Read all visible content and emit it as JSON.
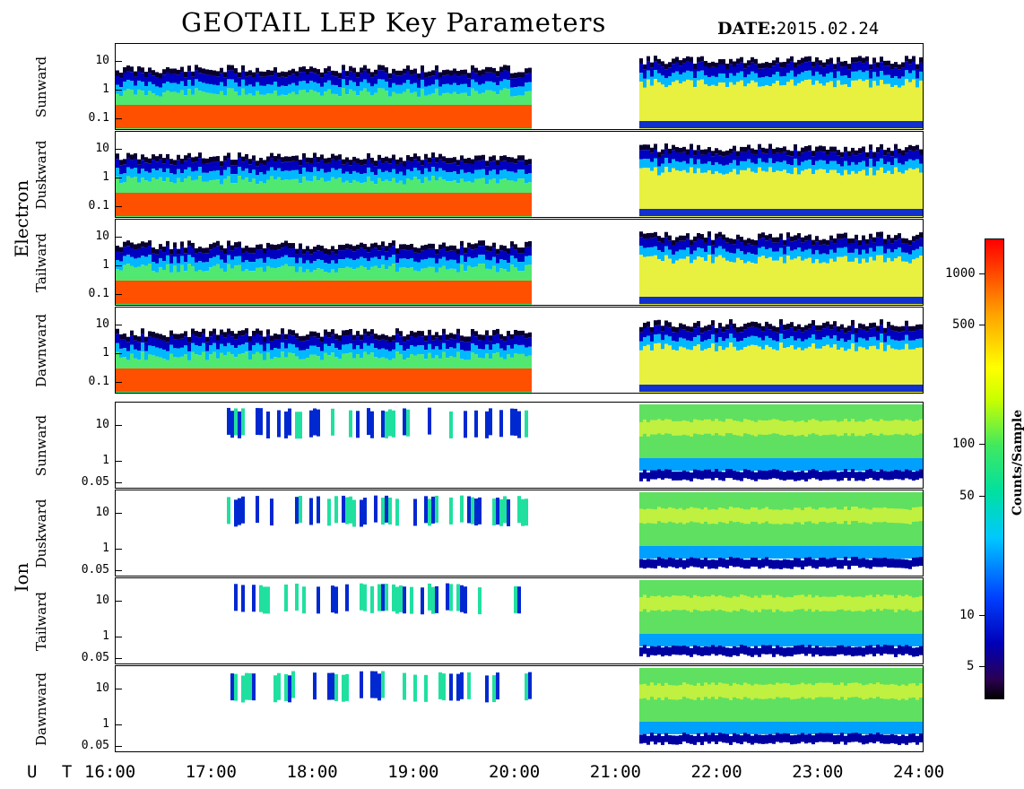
{
  "header": {
    "title": "GEOTAIL LEP Key Parameters",
    "date_label": "DATE:",
    "date_value": "2015.02.24"
  },
  "groups": [
    {
      "label": "Electron",
      "panels": [
        "Sunward",
        "Duskward",
        "Tailward",
        "Dawnward"
      ]
    },
    {
      "label": "Ion",
      "panels": [
        "Sunward",
        "Duskward",
        "Tailward",
        "Dawnward"
      ]
    }
  ],
  "x_axis": {
    "label": "U T",
    "ticks": [
      "16:00",
      "17:00",
      "18:00",
      "19:00",
      "20:00",
      "21:00",
      "22:00",
      "23:00",
      "24:00"
    ]
  },
  "colorbar": {
    "label": "Counts/Sample",
    "ticks": [
      "5",
      "10",
      "50",
      "100",
      "500",
      "1000"
    ],
    "colors": [
      "#000000",
      "#0000b8",
      "#0040ff",
      "#00c8ff",
      "#40e860",
      "#ffff00",
      "#ffa000",
      "#ff0000"
    ]
  },
  "chart_data": {
    "type": "heatmap",
    "title": "GEOTAIL LEP Key Parameters",
    "xlabel": "U T",
    "x_ticks": [
      "16:00",
      "17:00",
      "18:00",
      "19:00",
      "20:00",
      "21:00",
      "22:00",
      "23:00",
      "24:00"
    ],
    "xlim": [
      "16:00",
      "24:00"
    ],
    "data_gap": [
      "20:05",
      "21:10"
    ],
    "colorbar": {
      "label": "Counts/Sample",
      "ticks": [
        5,
        10,
        50,
        100,
        500,
        1000
      ],
      "scale": "log"
    },
    "panels": [
      {
        "group": "Electron",
        "direction": "Sunward",
        "y_ticks": [
          "10",
          "1",
          "0.1"
        ],
        "yscale": "log"
      },
      {
        "group": "Electron",
        "direction": "Duskward",
        "y_ticks": [
          "10",
          "1",
          "0.1"
        ],
        "yscale": "log"
      },
      {
        "group": "Electron",
        "direction": "Tailward",
        "y_ticks": [
          "10",
          "1",
          "0.1"
        ],
        "yscale": "log"
      },
      {
        "group": "Electron",
        "direction": "Dawnward",
        "y_ticks": [
          "10",
          "1",
          "0.1"
        ],
        "yscale": "log"
      },
      {
        "group": "Ion",
        "direction": "Sunward",
        "y_ticks": [
          "10",
          "1",
          "0.05"
        ],
        "yscale": "log"
      },
      {
        "group": "Ion",
        "direction": "Duskward",
        "y_ticks": [
          "10",
          "1",
          "0.05"
        ],
        "yscale": "log"
      },
      {
        "group": "Ion",
        "direction": "Tailward",
        "y_ticks": [
          "10",
          "1",
          "0.05"
        ],
        "yscale": "log"
      },
      {
        "group": "Ion",
        "direction": "Dawnward",
        "y_ticks": [
          "10",
          "1",
          "0.05"
        ],
        "yscale": "log"
      }
    ]
  }
}
